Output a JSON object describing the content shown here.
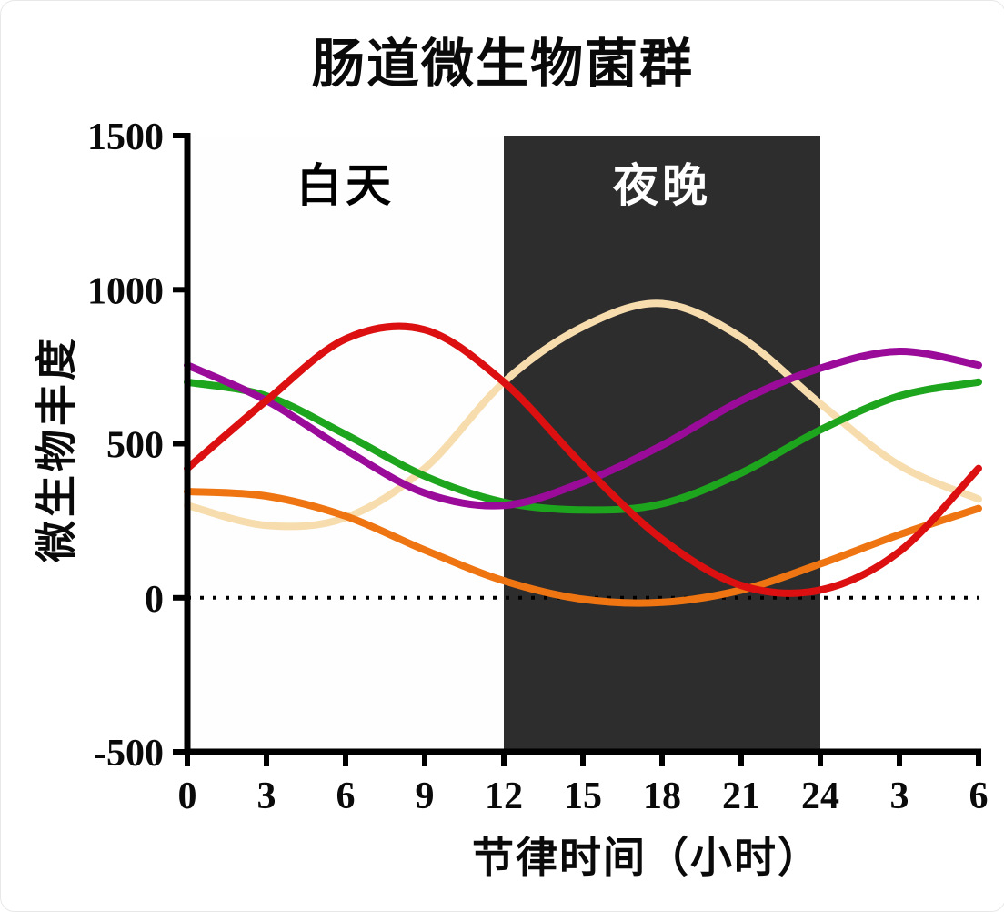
{
  "page": {
    "background": "#ffffff"
  },
  "chart_data": {
    "type": "line",
    "title": "肠道微生物菌群",
    "xlabel": "节律时间（小时）",
    "ylabel": "微生物丰度",
    "xlim": [
      0,
      30
    ],
    "ylim": [
      -500,
      1500
    ],
    "grid": false,
    "legend": "none",
    "x_hours": [
      0,
      3,
      6,
      9,
      12,
      15,
      18,
      21,
      24,
      27,
      30
    ],
    "xticklabels": [
      "0",
      "3",
      "6",
      "9",
      "12",
      "15",
      "18",
      "21",
      "24",
      "3",
      "6"
    ],
    "yticks": [
      -500,
      0,
      500,
      1000,
      1500
    ],
    "yticklabels": [
      "-500",
      "0",
      "500",
      "1000",
      "1500"
    ],
    "zero_line": {
      "y": 0,
      "style": "dotted",
      "color": "#000000"
    },
    "axis_color": "#000000",
    "regions": [
      {
        "label": "白天",
        "x_start": 0,
        "x_end": 12,
        "fill": "#fefefe",
        "label_color": "#000000"
      },
      {
        "label": "夜晚",
        "x_start": 12,
        "x_end": 24,
        "fill": "#2e2d2e",
        "label_color": "#ffffff"
      }
    ],
    "series": [
      {
        "name": "wheat",
        "color": "#f7ddae",
        "values": [
          300,
          235,
          260,
          420,
          700,
          880,
          955,
          845,
          630,
          430,
          320
        ]
      },
      {
        "name": "green",
        "color": "#1ea51e",
        "values": [
          700,
          655,
          530,
          395,
          310,
          285,
          305,
          405,
          545,
          655,
          700
        ]
      },
      {
        "name": "purple",
        "color": "#9a0b9a",
        "values": [
          755,
          640,
          480,
          340,
          300,
          375,
          495,
          640,
          745,
          800,
          755
        ]
      },
      {
        "name": "orange",
        "color": "#ee7512",
        "values": [
          345,
          330,
          265,
          155,
          55,
          -5,
          -15,
          25,
          110,
          205,
          290
        ]
      },
      {
        "name": "red",
        "color": "#dc1010",
        "values": [
          420,
          640,
          840,
          870,
          700,
          430,
          190,
          40,
          25,
          150,
          420
        ]
      }
    ]
  }
}
